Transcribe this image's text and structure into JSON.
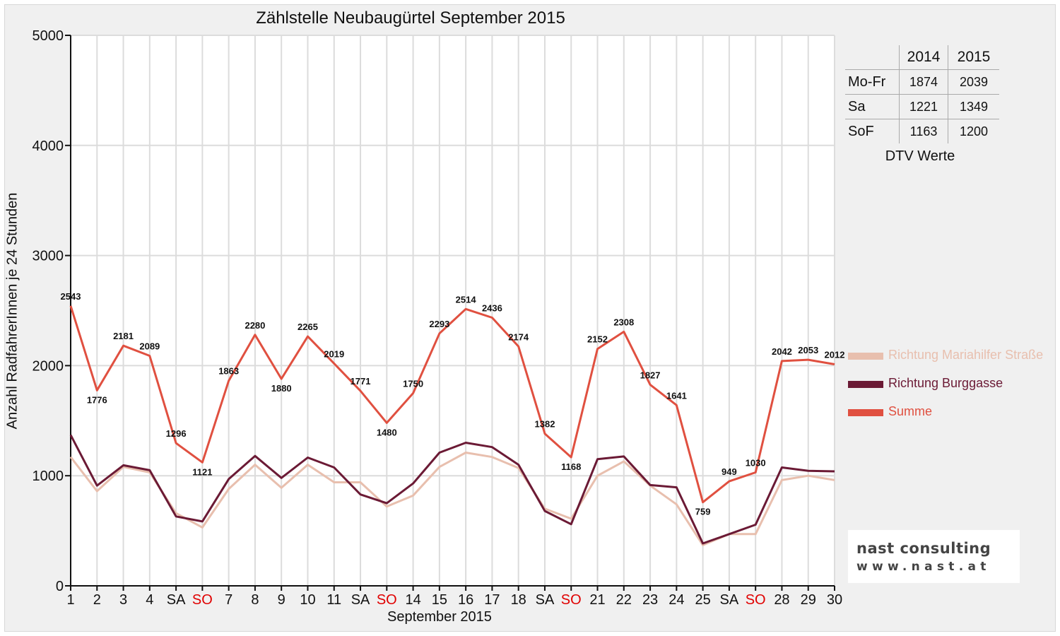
{
  "chart_data": {
    "type": "line",
    "title": "Zählstelle Neubaugürtel September 2015",
    "xlabel": "September 2015",
    "ylabel": "Anzahl RadfahrerInnen je 24 Stunden",
    "ylim": [
      0,
      5000
    ],
    "yticks": [
      0,
      1000,
      2000,
      3000,
      4000,
      5000
    ],
    "grid": true,
    "legend_position": "right",
    "categories": [
      "1",
      "2",
      "3",
      "4",
      "SA",
      "SO",
      "7",
      "8",
      "9",
      "10",
      "11",
      "SA",
      "SO",
      "14",
      "15",
      "16",
      "17",
      "18",
      "SA",
      "SO",
      "21",
      "22",
      "23",
      "24",
      "25",
      "SA",
      "SO",
      "28",
      "29",
      "30"
    ],
    "sunday_indices": [
      5,
      12,
      19,
      26
    ],
    "series": [
      {
        "name": "Richtung Mariahilfer Straße",
        "color": "#e8bfae",
        "values": [
          1170,
          860,
          1080,
          1030,
          660,
          530,
          880,
          1100,
          890,
          1100,
          940,
          940,
          720,
          820,
          1080,
          1210,
          1170,
          1070,
          700,
          610,
          1000,
          1130,
          910,
          740,
          370,
          470,
          470,
          960,
          1000,
          960
        ]
      },
      {
        "name": "Richtung Burggasse",
        "color": "#6b1a35",
        "values": [
          1370,
          910,
          1095,
          1050,
          630,
          585,
          970,
          1180,
          980,
          1165,
          1075,
          830,
          750,
          930,
          1210,
          1300,
          1260,
          1100,
          680,
          560,
          1150,
          1175,
          915,
          895,
          385,
          470,
          555,
          1075,
          1045,
          1040
        ]
      },
      {
        "name": "Summe",
        "color": "#e05040",
        "values": [
          2543,
          1776,
          2181,
          2089,
          1296,
          1121,
          1863,
          2280,
          1880,
          2265,
          2019,
          1771,
          1480,
          1750,
          2293,
          2514,
          2436,
          2174,
          1382,
          1168,
          2152,
          2308,
          1827,
          1641,
          759,
          949,
          1030,
          2042,
          2053,
          2012
        ],
        "data_labels": true
      }
    ]
  },
  "dtv_table": {
    "header": [
      "",
      "2014",
      "2015"
    ],
    "rows": [
      {
        "label": "Mo-Fr",
        "v2014": "1874",
        "v2015": "2039"
      },
      {
        "label": "Sa",
        "v2014": "1221",
        "v2015": "1349"
      },
      {
        "label": "SoF",
        "v2014": "1163",
        "v2015": "1200"
      }
    ],
    "caption": "DTV Werte"
  },
  "logo": {
    "brand": "nast consulting",
    "url": "www.nast.at"
  }
}
